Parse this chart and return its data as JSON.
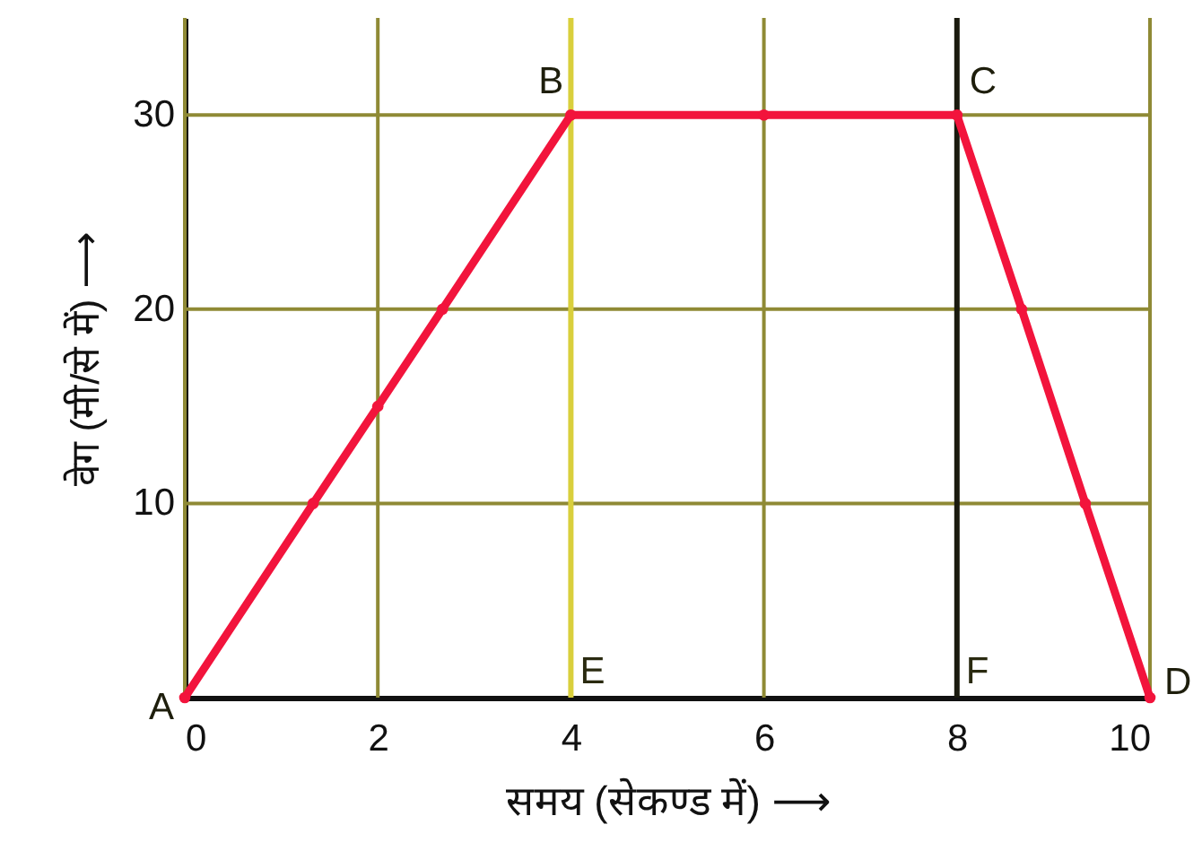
{
  "chart_data": {
    "type": "line",
    "xlabel": "समय (सेकण्ड में) ⟶",
    "ylabel": "वेग (मी/से में) ⟶",
    "x": [
      0,
      1.33,
      2,
      2.67,
      4,
      6,
      8,
      8.67,
      9.33,
      10
    ],
    "values": [
      0,
      10,
      15,
      20,
      30,
      30,
      30,
      20,
      10,
      0
    ],
    "color": "#f2143c",
    "xlim": [
      0,
      10
    ],
    "xticks": [
      0,
      2,
      4,
      6,
      8,
      10
    ],
    "ylim": [
      0,
      35
    ],
    "yticks": [
      10,
      20,
      30
    ],
    "grid": true,
    "marker": "circle",
    "line_style": "solid",
    "ref_lines": [
      {
        "axis": "x",
        "value": 4,
        "label": "E",
        "color": "#d9cf3c"
      },
      {
        "axis": "x",
        "value": 8,
        "label": "F",
        "color": "#1a1a0e"
      }
    ],
    "annotations": [
      {
        "text": "A",
        "x": 0,
        "y": 0
      },
      {
        "text": "B",
        "x": 4,
        "y": 30
      },
      {
        "text": "C",
        "x": 8,
        "y": 30
      },
      {
        "text": "D",
        "x": 10,
        "y": 0
      }
    ]
  }
}
